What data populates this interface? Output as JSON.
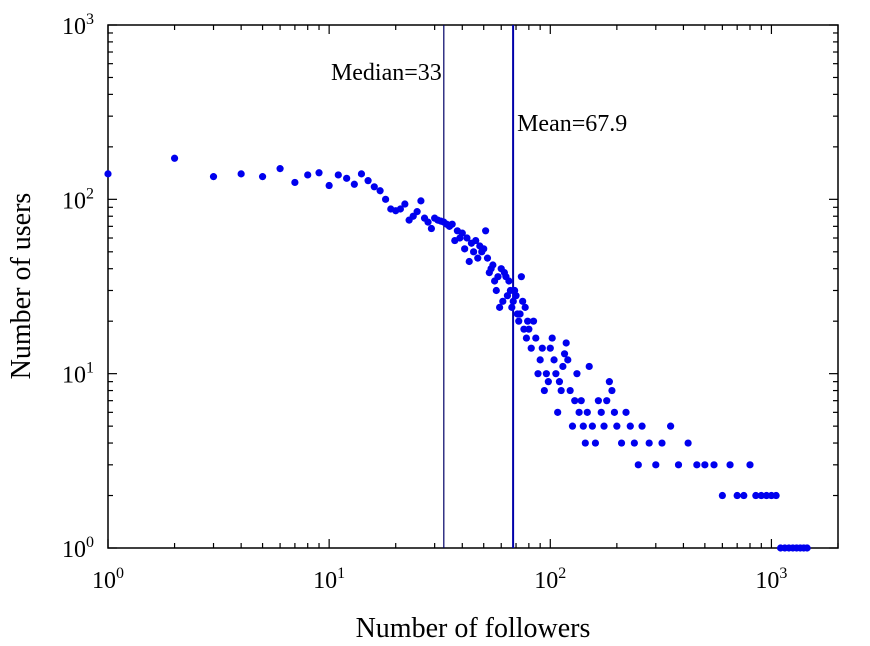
{
  "chart_data": {
    "type": "scatter",
    "xscale": "log",
    "yscale": "log",
    "xlim": [
      1,
      2000
    ],
    "ylim": [
      1,
      1000
    ],
    "xlabel": "Number of followers",
    "ylabel": "Number of users",
    "marker_color": "#0000ee",
    "xticks": [
      {
        "base": "10",
        "exp": "0",
        "value": 1
      },
      {
        "base": "10",
        "exp": "1",
        "value": 10
      },
      {
        "base": "10",
        "exp": "2",
        "value": 100
      },
      {
        "base": "10",
        "exp": "3",
        "value": 1000
      }
    ],
    "yticks": [
      {
        "base": "10",
        "exp": "0",
        "value": 1
      },
      {
        "base": "10",
        "exp": "1",
        "value": 10
      },
      {
        "base": "10",
        "exp": "2",
        "value": 100
      },
      {
        "base": "10",
        "exp": "3",
        "value": 1000
      }
    ],
    "reference_lines": [
      {
        "name": "median",
        "x": 33,
        "label": "Median=33",
        "color": "#000066"
      },
      {
        "name": "mean",
        "x": 67.9,
        "label": "Mean=67.9",
        "color": "#0000aa"
      }
    ],
    "points": [
      [
        1,
        140
      ],
      [
        2,
        172
      ],
      [
        3,
        135
      ],
      [
        4,
        140
      ],
      [
        5,
        135
      ],
      [
        6,
        150
      ],
      [
        7,
        125
      ],
      [
        8,
        138
      ],
      [
        9,
        142
      ],
      [
        10,
        120
      ],
      [
        11,
        138
      ],
      [
        12,
        132
      ],
      [
        13,
        122
      ],
      [
        14,
        140
      ],
      [
        15,
        128
      ],
      [
        16,
        118
      ],
      [
        17,
        112
      ],
      [
        18,
        100
      ],
      [
        19,
        88
      ],
      [
        20,
        86
      ],
      [
        21,
        88
      ],
      [
        22,
        94
      ],
      [
        23,
        76
      ],
      [
        24,
        80
      ],
      [
        25,
        85
      ],
      [
        26,
        98
      ],
      [
        27,
        78
      ],
      [
        28,
        74
      ],
      [
        29,
        68
      ],
      [
        30,
        78
      ],
      [
        31,
        76
      ],
      [
        32,
        75
      ],
      [
        33,
        74
      ],
      [
        34,
        72
      ],
      [
        35,
        70
      ],
      [
        36,
        72
      ],
      [
        37,
        58
      ],
      [
        38,
        66
      ],
      [
        39,
        60
      ],
      [
        40,
        64
      ],
      [
        41,
        52
      ],
      [
        42,
        60
      ],
      [
        43,
        44
      ],
      [
        44,
        56
      ],
      [
        45,
        50
      ],
      [
        46,
        58
      ],
      [
        47,
        46
      ],
      [
        48,
        54
      ],
      [
        49,
        50
      ],
      [
        50,
        52
      ],
      [
        51,
        66
      ],
      [
        52,
        46
      ],
      [
        53,
        38
      ],
      [
        54,
        40
      ],
      [
        55,
        42
      ],
      [
        56,
        34
      ],
      [
        57,
        30
      ],
      [
        58,
        36
      ],
      [
        59,
        24
      ],
      [
        60,
        40
      ],
      [
        61,
        26
      ],
      [
        62,
        38
      ],
      [
        63,
        36
      ],
      [
        64,
        28
      ],
      [
        65,
        34
      ],
      [
        66,
        30
      ],
      [
        67,
        24
      ],
      [
        68,
        26
      ],
      [
        69,
        30
      ],
      [
        70,
        28
      ],
      [
        71,
        22
      ],
      [
        72,
        20
      ],
      [
        73,
        22
      ],
      [
        74,
        36
      ],
      [
        75,
        26
      ],
      [
        76,
        18
      ],
      [
        77,
        24
      ],
      [
        78,
        16
      ],
      [
        79,
        20
      ],
      [
        80,
        18
      ],
      [
        82,
        14
      ],
      [
        84,
        20
      ],
      [
        86,
        16
      ],
      [
        88,
        10
      ],
      [
        90,
        12
      ],
      [
        92,
        14
      ],
      [
        94,
        8
      ],
      [
        96,
        10
      ],
      [
        98,
        9
      ],
      [
        100,
        14
      ],
      [
        102,
        16
      ],
      [
        104,
        12
      ],
      [
        106,
        10
      ],
      [
        108,
        6
      ],
      [
        110,
        9
      ],
      [
        112,
        8
      ],
      [
        114,
        11
      ],
      [
        116,
        13
      ],
      [
        118,
        15
      ],
      [
        120,
        12
      ],
      [
        123,
        8
      ],
      [
        126,
        5
      ],
      [
        129,
        7
      ],
      [
        132,
        10
      ],
      [
        135,
        6
      ],
      [
        138,
        7
      ],
      [
        141,
        5
      ],
      [
        144,
        4
      ],
      [
        147,
        6
      ],
      [
        150,
        11
      ],
      [
        155,
        5
      ],
      [
        160,
        4
      ],
      [
        165,
        7
      ],
      [
        170,
        6
      ],
      [
        175,
        5
      ],
      [
        180,
        7
      ],
      [
        185,
        9
      ],
      [
        190,
        8
      ],
      [
        195,
        6
      ],
      [
        200,
        5
      ],
      [
        210,
        4
      ],
      [
        220,
        6
      ],
      [
        230,
        5
      ],
      [
        240,
        4
      ],
      [
        250,
        3
      ],
      [
        260,
        5
      ],
      [
        280,
        4
      ],
      [
        300,
        3
      ],
      [
        320,
        4
      ],
      [
        350,
        5
      ],
      [
        380,
        3
      ],
      [
        420,
        4
      ],
      [
        460,
        3
      ],
      [
        500,
        3
      ],
      [
        550,
        3
      ],
      [
        600,
        2
      ],
      [
        650,
        3
      ],
      [
        700,
        2
      ],
      [
        750,
        2
      ],
      [
        800,
        3
      ],
      [
        850,
        2
      ],
      [
        900,
        2
      ],
      [
        950,
        2
      ],
      [
        1000,
        2
      ],
      [
        1050,
        2
      ],
      [
        1100,
        1
      ],
      [
        1150,
        1
      ],
      [
        1200,
        1
      ],
      [
        1250,
        1
      ],
      [
        1300,
        1
      ],
      [
        1350,
        1
      ],
      [
        1400,
        1
      ],
      [
        1450,
        1
      ]
    ]
  }
}
